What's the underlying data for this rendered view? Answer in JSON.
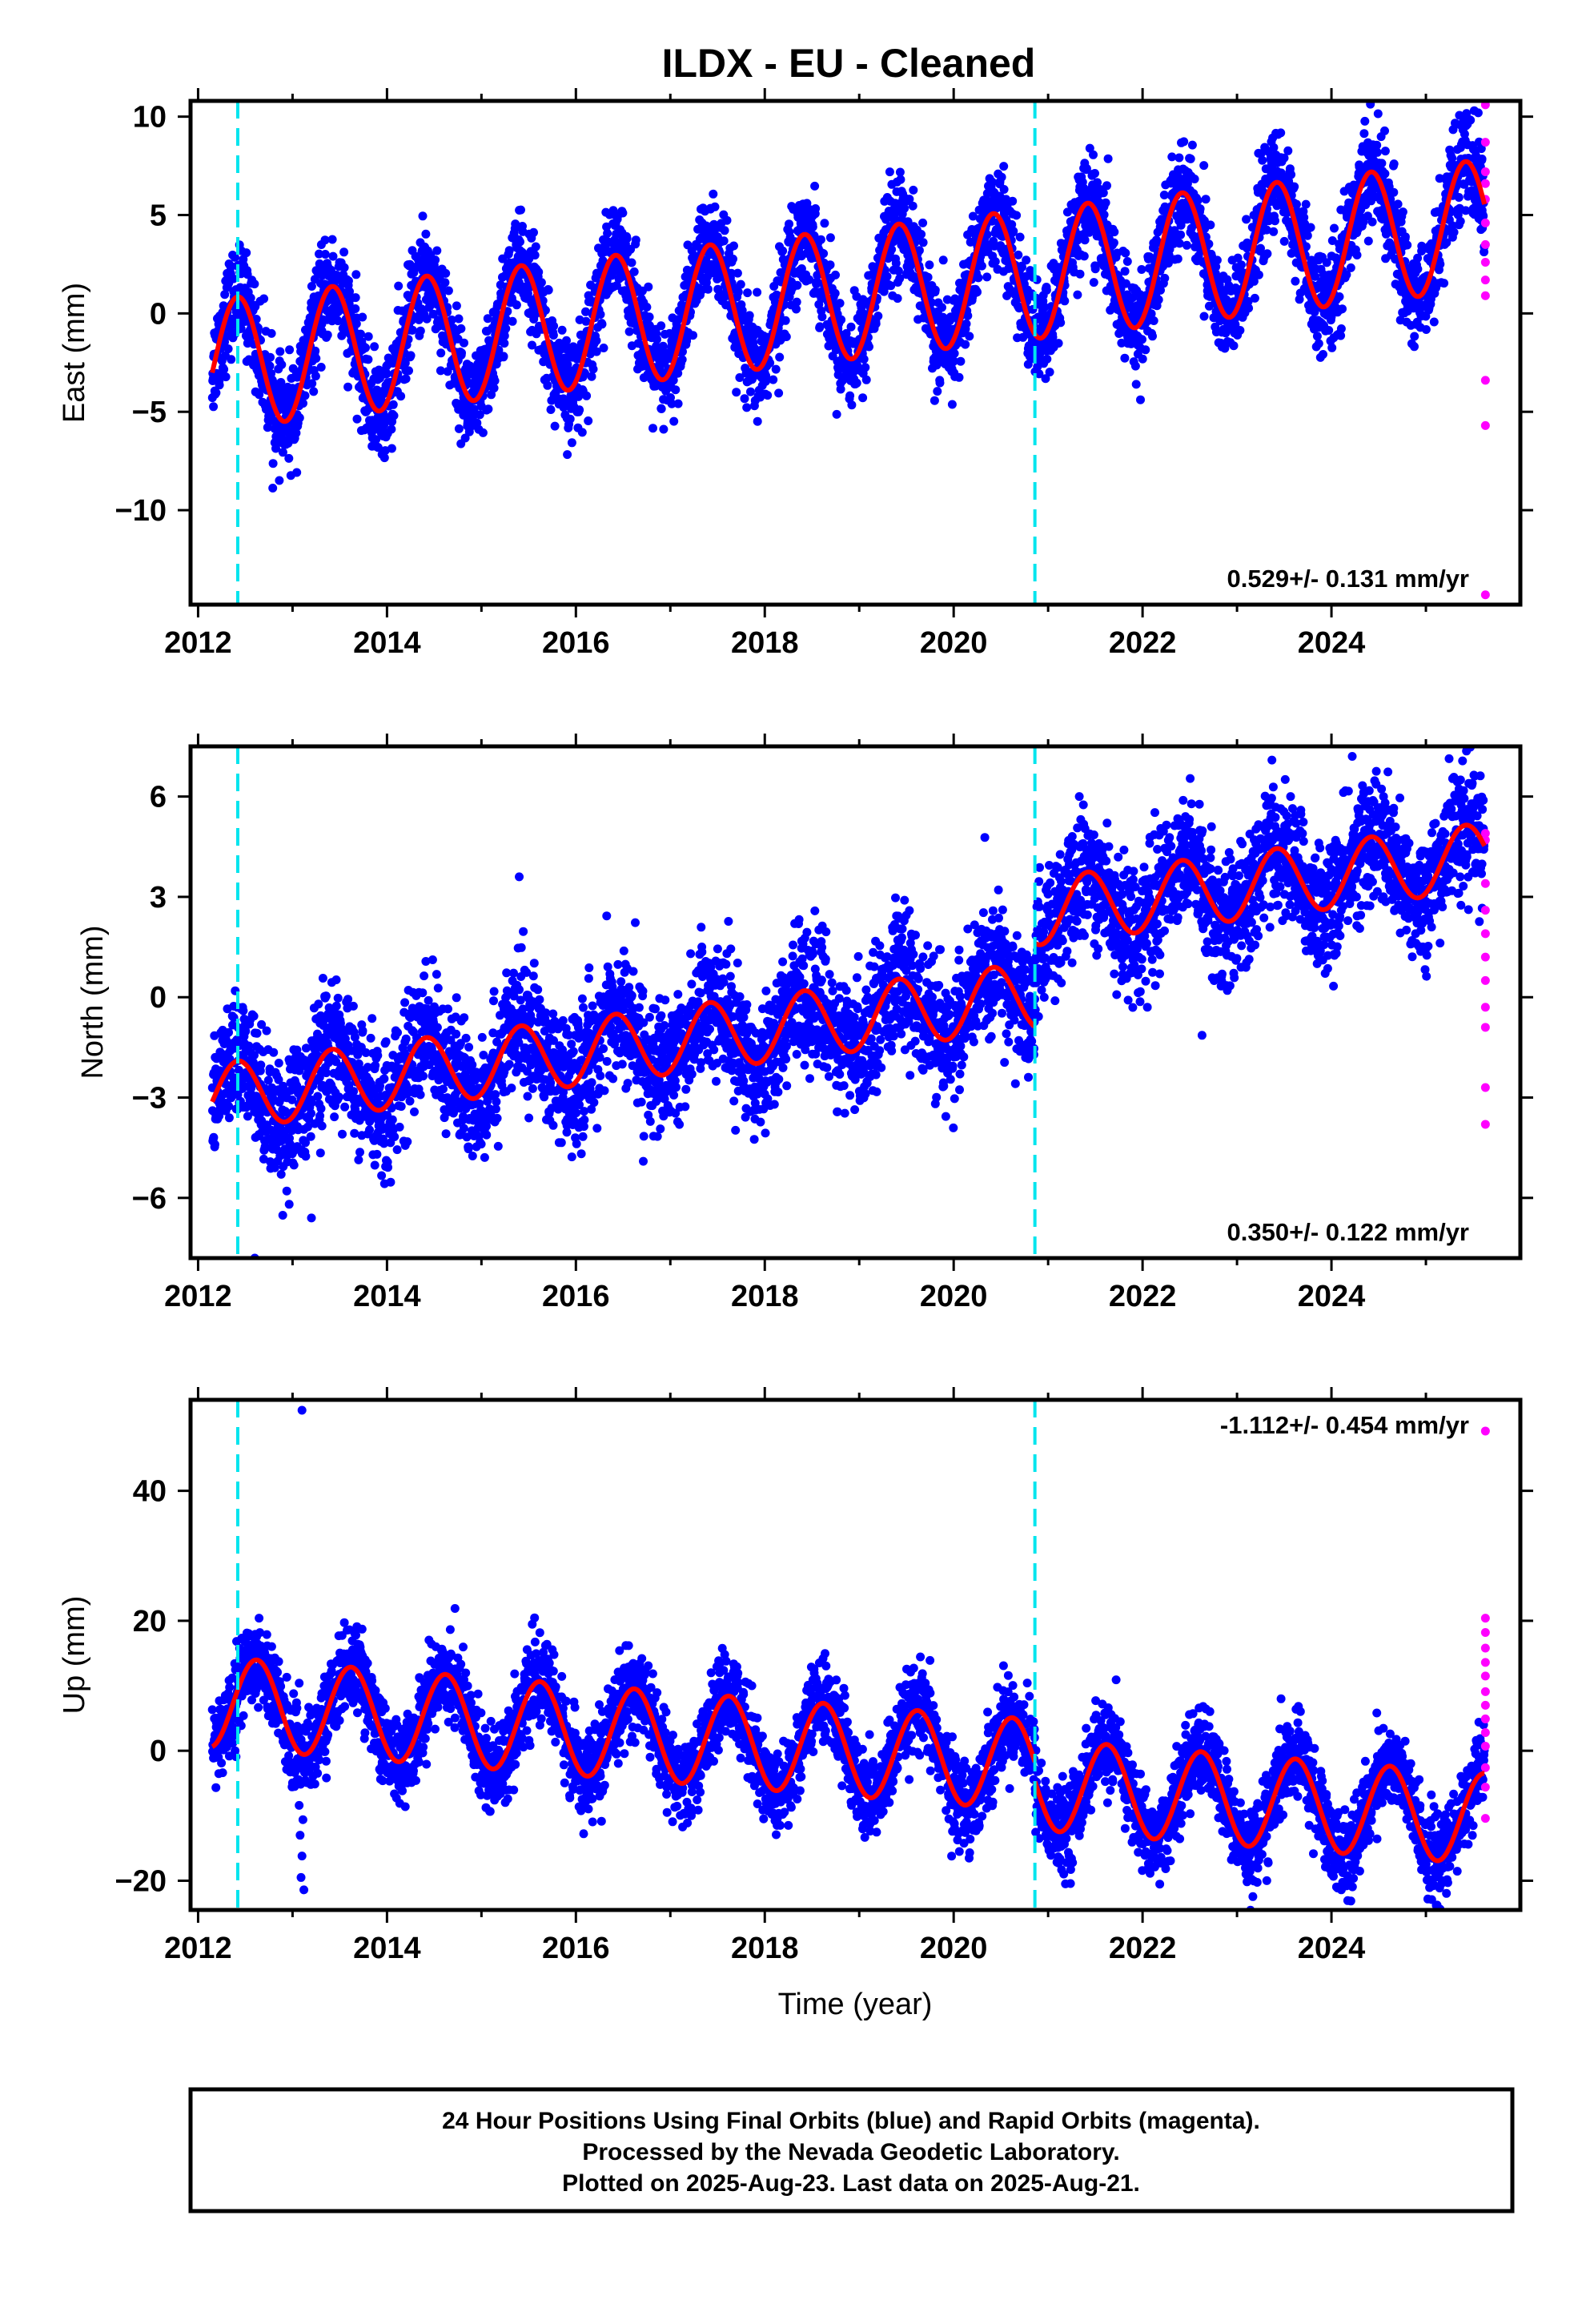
{
  "title": "ILDX  - EU - Cleaned",
  "xlabel": "Time (year)",
  "footer": {
    "line1": "24 Hour Positions Using Final Orbits (blue) and Rapid Orbits (magenta).",
    "line2": "Processed by the Nevada Geodetic Laboratory.",
    "line3": "Plotted on 2025-Aug-23. Last data on 2025-Aug-21."
  },
  "colors": {
    "final_orbits": "#0000ff",
    "rapid_orbits": "#ff00ff",
    "model": "#ff0000",
    "steps": "#00e5ee"
  },
  "chart_data": [
    {
      "type": "scatter",
      "name": "east",
      "ylabel": "East (mm)",
      "xlim": [
        2011.92,
        2026.0
      ],
      "ylim": [
        -14.8,
        10.8
      ],
      "xticks": [
        2012,
        2014,
        2016,
        2018,
        2020,
        2022,
        2024
      ],
      "yticks": [
        -10,
        -5,
        0,
        5,
        10
      ],
      "ytick_labels": [
        "−10",
        "−5",
        "0",
        "5",
        "10"
      ],
      "rate": "0.529+/- 0.131 mm/yr",
      "rate_position": "bottom-right",
      "steps": [
        2012.42,
        2020.86
      ],
      "model": {
        "start": 2012.15,
        "end": 2025.62,
        "offset": -2.6,
        "trend": 0.529,
        "amplitude": 3.3,
        "phase_year": 0.42,
        "step_jumps": [
          0,
          0
        ]
      },
      "final_orbits_scatter": {
        "count": 4900,
        "std": 1.25
      },
      "rapid_orbits": [
        {
          "x": 2025.63,
          "y": 10.6
        },
        {
          "x": 2025.63,
          "y": 8.7
        },
        {
          "x": 2025.63,
          "y": 7.2
        },
        {
          "x": 2025.63,
          "y": 6.6
        },
        {
          "x": 2025.63,
          "y": 5.8
        },
        {
          "x": 2025.63,
          "y": 4.6
        },
        {
          "x": 2025.63,
          "y": 3.5
        },
        {
          "x": 2025.63,
          "y": 2.6
        },
        {
          "x": 2025.63,
          "y": 1.7
        },
        {
          "x": 2025.63,
          "y": 0.9
        },
        {
          "x": 2025.63,
          "y": -3.4
        },
        {
          "x": 2025.63,
          "y": -5.7
        },
        {
          "x": 2025.63,
          "y": -14.3
        }
      ],
      "outliers": []
    },
    {
      "type": "scatter",
      "name": "north",
      "ylabel": "North (mm)",
      "xlim": [
        2011.92,
        2026.0
      ],
      "ylim": [
        -7.8,
        7.5
      ],
      "xticks": [
        2012,
        2014,
        2016,
        2018,
        2020,
        2022,
        2024
      ],
      "yticks": [
        -6,
        -3,
        0,
        3,
        6
      ],
      "ytick_labels": [
        "−6",
        "−3",
        "0",
        "3",
        "6"
      ],
      "rate": "0.350+/- 0.122 mm/yr",
      "rate_position": "bottom-right",
      "steps": [
        2012.42,
        2020.86
      ],
      "model": {
        "start": 2012.15,
        "end": 2025.62,
        "offset": -3.0,
        "trend": 0.35,
        "amplitude": 1.0,
        "phase_year": 0.42,
        "step_jumps": [
          0,
          2.5
        ]
      },
      "final_orbits_scatter": {
        "count": 4900,
        "std": 0.95
      },
      "rapid_orbits": [
        {
          "x": 2025.63,
          "y": 4.9
        },
        {
          "x": 2025.63,
          "y": 4.7
        },
        {
          "x": 2025.63,
          "y": 3.4
        },
        {
          "x": 2025.63,
          "y": 2.6
        },
        {
          "x": 2025.63,
          "y": 1.9
        },
        {
          "x": 2025.63,
          "y": 1.2
        },
        {
          "x": 2025.63,
          "y": 0.5
        },
        {
          "x": 2025.63,
          "y": -0.3
        },
        {
          "x": 2025.63,
          "y": -0.9
        },
        {
          "x": 2025.63,
          "y": -2.7
        },
        {
          "x": 2025.63,
          "y": -3.8
        }
      ],
      "outliers": [
        {
          "x": 2015.4,
          "y": 3.6
        },
        {
          "x": 2024.22,
          "y": 7.2
        },
        {
          "x": 2012.6,
          "y": -7.8
        },
        {
          "x": 2013.2,
          "y": -6.6
        }
      ]
    },
    {
      "type": "scatter",
      "name": "up",
      "ylabel": "Up (mm)",
      "xlim": [
        2011.92,
        2026.0
      ],
      "ylim": [
        -24.5,
        54.0
      ],
      "xticks": [
        2012,
        2014,
        2016,
        2018,
        2020,
        2022,
        2024
      ],
      "yticks": [
        -20,
        0,
        20,
        40
      ],
      "ytick_labels": [
        "−20",
        "0",
        "20",
        "40"
      ],
      "rate": "-1.112+/- 0.454 mm/yr",
      "rate_position": "top-right",
      "steps": [
        2012.42,
        2020.86
      ],
      "model": {
        "start": 2012.15,
        "end": 2025.62,
        "offset": 7.5,
        "trend": -1.112,
        "amplitude": 7.0,
        "phase_year": 0.62,
        "step_jumps": [
          0,
          -3.0
        ]
      },
      "final_orbits_scatter": {
        "count": 4900,
        "std": 3.2
      },
      "rapid_orbits": [
        {
          "x": 2025.63,
          "y": 49.2
        },
        {
          "x": 2025.63,
          "y": 20.4
        },
        {
          "x": 2025.63,
          "y": 18.2
        },
        {
          "x": 2025.63,
          "y": 15.8
        },
        {
          "x": 2025.63,
          "y": 13.6
        },
        {
          "x": 2025.63,
          "y": 11.5
        },
        {
          "x": 2025.63,
          "y": 9.1
        },
        {
          "x": 2025.63,
          "y": 7.0
        },
        {
          "x": 2025.63,
          "y": 4.9
        },
        {
          "x": 2025.63,
          "y": 2.8
        },
        {
          "x": 2025.63,
          "y": 0.7
        },
        {
          "x": 2025.63,
          "y": -2.6
        },
        {
          "x": 2025.63,
          "y": -5.6
        },
        {
          "x": 2025.63,
          "y": -10.4
        }
      ],
      "outliers": [
        {
          "x": 2013.1,
          "y": 52.4
        },
        {
          "x": 2014.72,
          "y": 21.9
        },
        {
          "x": 2013.12,
          "y": -21.4
        },
        {
          "x": 2013.09,
          "y": -19.5
        },
        {
          "x": 2013.1,
          "y": -16.2
        },
        {
          "x": 2013.08,
          "y": -13.0
        },
        {
          "x": 2013.11,
          "y": -10.6
        },
        {
          "x": 2013.07,
          "y": -8.4
        }
      ]
    }
  ]
}
